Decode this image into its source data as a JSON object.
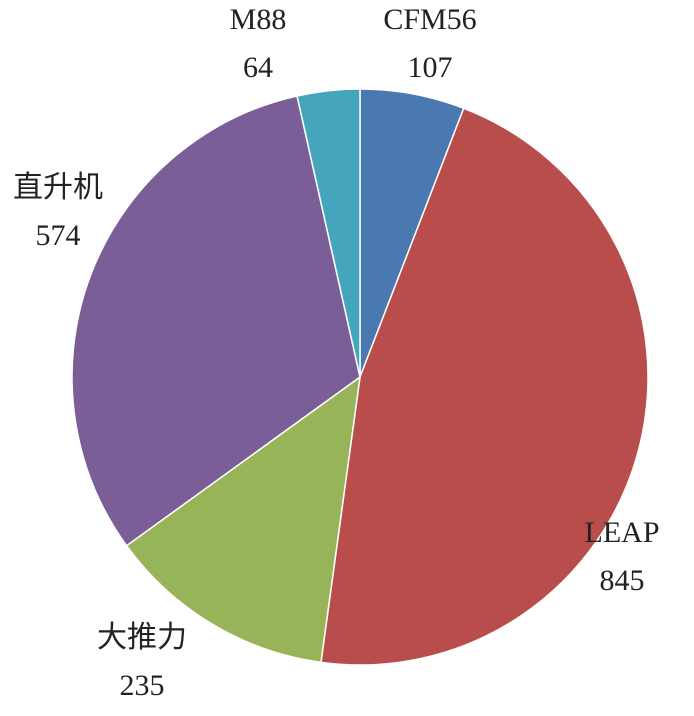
{
  "chart_data": {
    "type": "pie",
    "categories": [
      "CFM56",
      "LEAP",
      "大推力",
      "直升机",
      "M88"
    ],
    "values": [
      107,
      845,
      235,
      574,
      64
    ],
    "colors": [
      "#4a78b0",
      "#b94d4b",
      "#98b458",
      "#7b5e98",
      "#45a5bd"
    ]
  }
}
